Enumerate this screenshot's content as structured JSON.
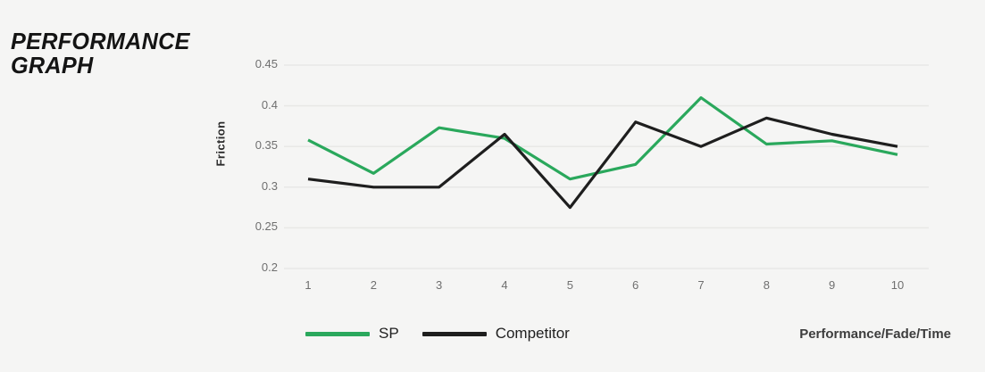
{
  "page": {
    "background_color": "#f5f5f4"
  },
  "header": {
    "title_line1": "PERFORMANCE",
    "title_line2": "GRAPH"
  },
  "chart_data": {
    "type": "line",
    "title": "Performance Graph",
    "x": [
      1,
      2,
      3,
      4,
      5,
      6,
      7,
      8,
      9,
      10
    ],
    "series": [
      {
        "name": "SP",
        "color": "#2aa85c",
        "values": [
          0.358,
          0.317,
          0.373,
          0.36,
          0.31,
          0.328,
          0.41,
          0.353,
          0.357,
          0.34
        ]
      },
      {
        "name": "Competitor",
        "color": "#1e1e1e",
        "values": [
          0.31,
          0.3,
          0.3,
          0.365,
          0.275,
          0.38,
          0.35,
          0.385,
          0.365,
          0.35
        ]
      }
    ],
    "ylabel": "Friction",
    "xlabel": "Performance/Fade/Time",
    "ylim": [
      0.2,
      0.45
    ],
    "yticks": [
      0.2,
      0.25,
      0.3,
      0.35,
      0.4,
      0.45
    ],
    "ytick_labels": [
      "0.2",
      "0.25",
      "0.3",
      "0.35",
      "0.4",
      "0.45"
    ],
    "xtick_labels": [
      "1",
      "2",
      "3",
      "4",
      "5",
      "6",
      "7",
      "8",
      "9",
      "10"
    ],
    "grid": "horizontal-only",
    "legend_position": "bottom",
    "gridline_color": "#e8e8e6"
  }
}
